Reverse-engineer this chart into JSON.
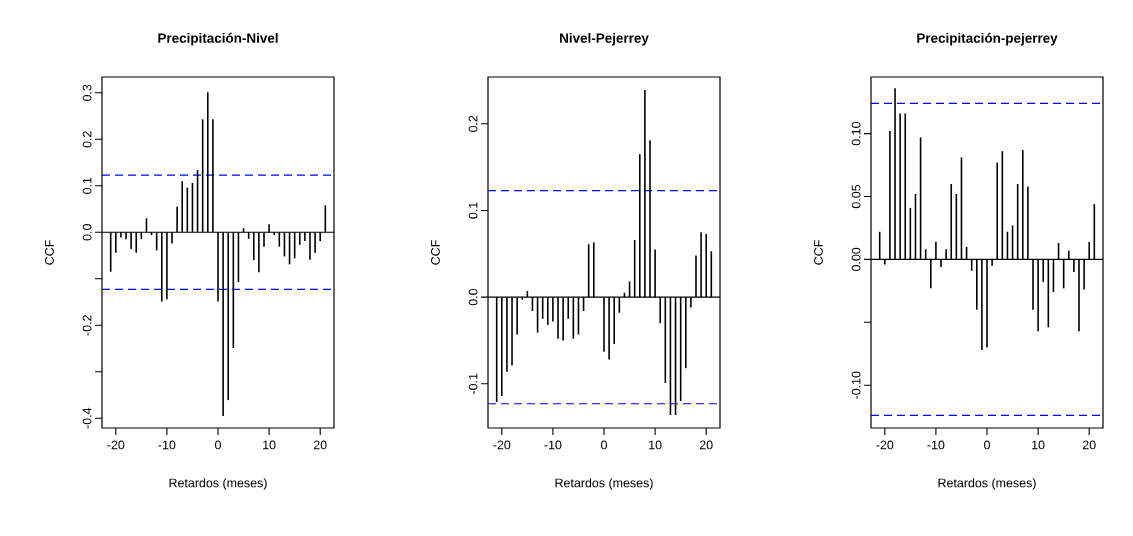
{
  "chart_data": [
    {
      "type": "bar",
      "title": "Precipitación-Nivel",
      "xlabel": "Retardos (meses)",
      "ylabel": "CCF",
      "color": "#000000",
      "x": [
        -21,
        -20,
        -19,
        -18,
        -17,
        -16,
        -15,
        -14,
        -13,
        -12,
        -11,
        -10,
        -9,
        -8,
        -7,
        -6,
        -5,
        -4,
        -3,
        -2,
        -1,
        0,
        1,
        2,
        3,
        4,
        5,
        6,
        7,
        8,
        9,
        10,
        11,
        12,
        13,
        14,
        15,
        16,
        17,
        18,
        19,
        20,
        21
      ],
      "values": [
        -0.085,
        -0.044,
        -0.011,
        -0.015,
        -0.036,
        -0.044,
        -0.015,
        0.03,
        -0.006,
        -0.039,
        -0.149,
        -0.144,
        -0.024,
        0.055,
        0.11,
        0.096,
        0.106,
        0.134,
        0.243,
        0.301,
        0.243,
        -0.149,
        -0.395,
        -0.361,
        -0.249,
        -0.107,
        0.009,
        -0.014,
        -0.06,
        -0.086,
        -0.031,
        0.017,
        -0.006,
        -0.031,
        -0.052,
        -0.069,
        -0.056,
        -0.027,
        -0.019,
        -0.059,
        -0.044,
        -0.019,
        0.058
      ],
      "xlim": [
        -22.7,
        22.7
      ],
      "ylim": [
        -0.421,
        0.334
      ],
      "xticks": [
        -20,
        -10,
        0,
        10,
        20
      ],
      "yticks": [
        {
          "value": -0.4,
          "label": "-0.4"
        },
        {
          "value": -0.3,
          "label": null
        },
        {
          "value": -0.2,
          "label": "-0.2"
        },
        {
          "value": -0.1,
          "label": null
        },
        {
          "value": 0,
          "label": "0.0"
        },
        {
          "value": 0.1,
          "label": "0.1"
        },
        {
          "value": 0.2,
          "label": "0.2"
        },
        {
          "value": 0.3,
          "label": "0.3"
        }
      ],
      "ref_lines": [
        {
          "axis": "y",
          "value": 0,
          "color": "#000000",
          "line_style": "solid"
        },
        {
          "axis": "y",
          "value": 0.123,
          "color": "#0000ff",
          "line_style": "dashed"
        },
        {
          "axis": "y",
          "value": -0.123,
          "color": "#0000ff",
          "line_style": "dashed"
        }
      ]
    },
    {
      "type": "bar",
      "title": "Nivel-Pejerrey",
      "xlabel": "Retardos (meses)",
      "ylabel": "CCF",
      "color": "#000000",
      "x": [
        -21,
        -20,
        -19,
        -18,
        -17,
        -16,
        -15,
        -14,
        -13,
        -12,
        -11,
        -10,
        -9,
        -8,
        -7,
        -6,
        -5,
        -4,
        -3,
        -2,
        -1,
        0,
        1,
        2,
        3,
        4,
        5,
        6,
        7,
        8,
        9,
        10,
        11,
        12,
        13,
        14,
        15,
        16,
        17,
        18,
        19,
        20,
        21
      ],
      "values": [
        -0.121,
        -0.114,
        -0.086,
        -0.079,
        -0.043,
        -0.003,
        0.007,
        -0.016,
        -0.041,
        -0.025,
        -0.032,
        -0.028,
        -0.048,
        -0.05,
        -0.025,
        -0.048,
        -0.043,
        -0.016,
        0.061,
        0.063,
        0.0,
        -0.063,
        -0.072,
        -0.054,
        -0.018,
        0.005,
        0.018,
        0.066,
        0.165,
        0.239,
        0.181,
        0.055,
        -0.03,
        -0.099,
        -0.136,
        -0.136,
        -0.12,
        -0.082,
        -0.012,
        0.048,
        0.075,
        0.073,
        0.053
      ],
      "xlim": [
        -22.7,
        22.7
      ],
      "ylim": [
        -0.151,
        0.254
      ],
      "xticks": [
        -20,
        -10,
        0,
        10,
        20
      ],
      "yticks": [
        {
          "value": -0.1,
          "label": "-0.1"
        },
        {
          "value": 0,
          "label": "0.0"
        },
        {
          "value": 0.1,
          "label": "0.1"
        },
        {
          "value": 0.2,
          "label": "0.2"
        }
      ],
      "ref_lines": [
        {
          "axis": "y",
          "value": 0,
          "color": "#000000",
          "line_style": "solid"
        },
        {
          "axis": "y",
          "value": 0.123,
          "color": "#0000ff",
          "line_style": "dashed"
        },
        {
          "axis": "y",
          "value": -0.123,
          "color": "#0000ff",
          "line_style": "dashed"
        }
      ]
    },
    {
      "type": "bar",
      "title": "Precipitación-pejerrey",
      "xlabel": "Retardos (meses)",
      "ylabel": "CCF",
      "color": "#000000",
      "x": [
        -21,
        -20,
        -19,
        -18,
        -17,
        -16,
        -15,
        -14,
        -13,
        -12,
        -11,
        -10,
        -9,
        -8,
        -7,
        -6,
        -5,
        -4,
        -3,
        -2,
        -1,
        0,
        1,
        2,
        3,
        4,
        5,
        6,
        7,
        8,
        9,
        10,
        11,
        12,
        13,
        14,
        15,
        16,
        17,
        18,
        19,
        20,
        21
      ],
      "values": [
        0.022,
        -0.004,
        0.102,
        0.136,
        0.116,
        0.116,
        0.041,
        0.052,
        0.097,
        0.008,
        -0.023,
        0.014,
        -0.006,
        0.008,
        0.06,
        0.052,
        0.081,
        0.01,
        -0.009,
        -0.04,
        -0.072,
        -0.07,
        -0.005,
        0.077,
        0.086,
        0.022,
        0.027,
        0.06,
        0.087,
        0.058,
        -0.04,
        -0.057,
        -0.018,
        -0.054,
        -0.026,
        0.013,
        -0.023,
        0.007,
        -0.01,
        -0.057,
        -0.024,
        0.014,
        0.044
      ],
      "xlim": [
        -22.7,
        22.7
      ],
      "ylim": [
        -0.134,
        0.145
      ],
      "xticks": [
        -20,
        -10,
        0,
        10,
        20
      ],
      "yticks": [
        {
          "value": -0.1,
          "label": "-0.10"
        },
        {
          "value": -0.05,
          "label": null
        },
        {
          "value": 0,
          "label": "0.00"
        },
        {
          "value": 0.05,
          "label": "0.05"
        },
        {
          "value": 0.1,
          "label": "0.10"
        }
      ],
      "ref_lines": [
        {
          "axis": "y",
          "value": 0,
          "color": "#000000",
          "line_style": "solid"
        },
        {
          "axis": "y",
          "value": 0.124,
          "color": "#0000ff",
          "line_style": "dashed"
        },
        {
          "axis": "y",
          "value": -0.124,
          "color": "#0000ff",
          "line_style": "dashed"
        }
      ]
    }
  ]
}
